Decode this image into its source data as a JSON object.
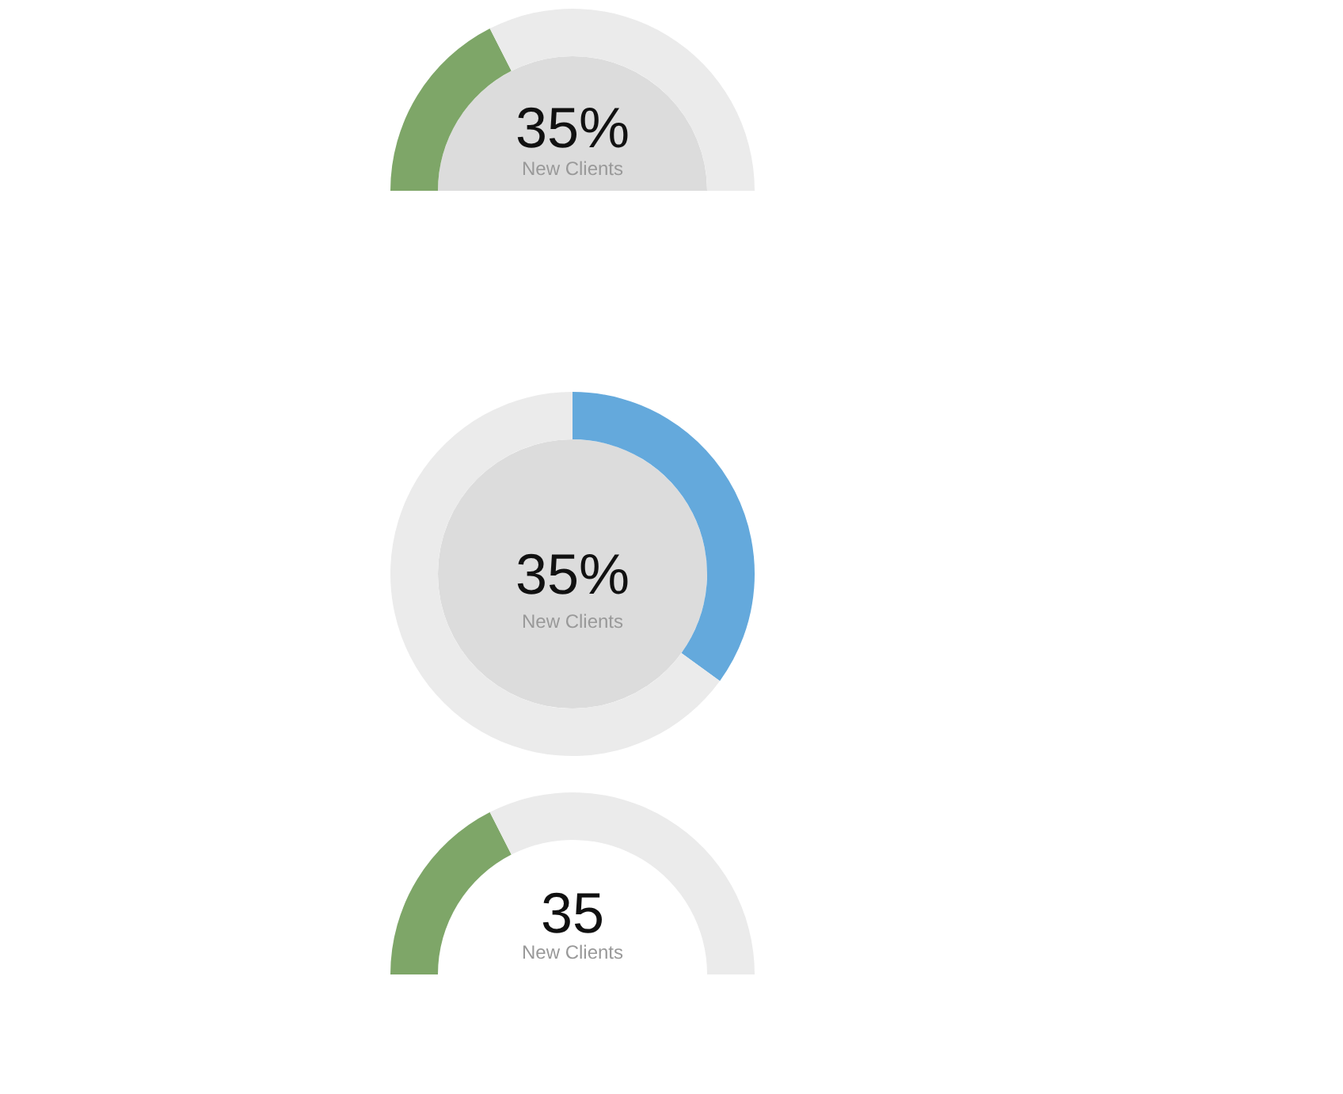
{
  "chart_data": [
    {
      "type": "donut",
      "categories": [
        null,
        null
      ],
      "values": [
        35,
        65
      ],
      "colors": [
        "#7ea668",
        "#ebebeb"
      ],
      "annotations": [
        "35%",
        "New Clients"
      ]
    },
    {
      "type": "donut",
      "categories": [
        null,
        null
      ],
      "values": [
        35,
        65
      ],
      "colors": [
        "#64a9dc",
        "#ebebeb"
      ],
      "annotations": [
        "35%",
        "New Clients"
      ]
    },
    {
      "type": "donut",
      "categories": [
        null,
        null
      ],
      "values": [
        35,
        65
      ],
      "colors": [
        "#7ea668",
        "#ebebeb"
      ],
      "annotations": [
        "35",
        "New Clients"
      ]
    }
  ]
}
